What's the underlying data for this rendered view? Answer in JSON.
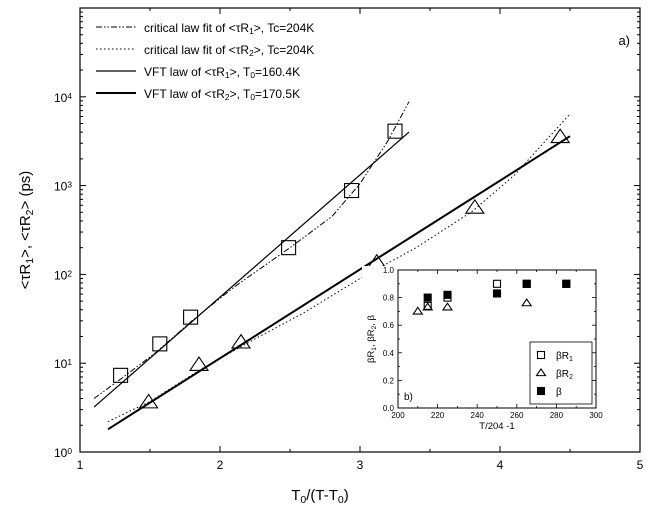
{
  "chart_data": [
    {
      "type": "scatter",
      "xlabel": "T₀/(T-T₀)",
      "ylabel": "<τR₁>, <τR₂> (ps)",
      "panel_label": "a)",
      "xlim": [
        1,
        5
      ],
      "ylim": [
        1,
        100000
      ],
      "yscale": "log",
      "x_ticks": [
        "1",
        "2",
        "3",
        "4",
        "5"
      ],
      "y_ticks": [
        "10⁰",
        "10¹",
        "10²",
        "10³",
        "10⁴"
      ],
      "legend_position": "top-left",
      "series": [
        {
          "name": "<τR₁>",
          "marker": "open-square",
          "x": [
            1.29,
            1.57,
            1.79,
            2.49,
            2.94,
            3.25
          ],
          "y": [
            7.3,
            16.5,
            33,
            200,
            880,
            4100
          ]
        },
        {
          "name": "<τR₂>",
          "marker": "open-triangle",
          "x": [
            1.49,
            1.85,
            2.15,
            3.12,
            3.82,
            4.43
          ],
          "y": [
            3.6,
            9.5,
            17,
            135,
            560,
            3500
          ]
        }
      ],
      "fits": [
        {
          "label": "critical law fit of <τR₁>, Tc=204K",
          "style": "dash-dot-dot",
          "x": [
            1.1,
            1.3,
            1.55,
            1.8,
            2.1,
            2.5,
            2.8,
            3.0,
            3.2,
            3.35
          ],
          "y": [
            4,
            6.8,
            13.5,
            30,
            72,
            200,
            450,
            1050,
            3200,
            8800
          ]
        },
        {
          "label": "critical law fit of <τR₂>, Tc=204K",
          "style": "dotted",
          "x": [
            1.2,
            1.5,
            1.85,
            2.2,
            2.6,
            3.0,
            3.4,
            3.8,
            4.1,
            4.5
          ],
          "y": [
            2.2,
            3.7,
            8.3,
            17,
            37,
            90,
            200,
            510,
            1300,
            6400
          ]
        },
        {
          "label": "VFT law of <τR₁>, T₀=160.4K",
          "style": "solid-thin",
          "x": [
            1.1,
            3.35
          ],
          "y": [
            3.2,
            4000
          ]
        },
        {
          "label": "VFT law of <τR₂>, T₀=170.5K",
          "style": "solid-thick",
          "x": [
            1.2,
            4.5
          ],
          "y": [
            1.8,
            3600
          ]
        }
      ]
    },
    {
      "type": "scatter",
      "panel_label": "b)",
      "xlabel": "T/204 -1",
      "ylabel": "βR₁, βR₂, β",
      "xlim": [
        200,
        300
      ],
      "ylim": [
        0.0,
        1.0
      ],
      "x_ticks": [
        "200",
        "220",
        "240",
        "260",
        "280",
        "300"
      ],
      "y_ticks": [
        "0.0",
        "0.2",
        "0.4",
        "0.6",
        "0.8",
        "1.0"
      ],
      "legend_position": "bottom-right",
      "series": [
        {
          "name": "βR₁",
          "marker": "open-square",
          "x": [
            215,
            225,
            250,
            265,
            285
          ],
          "y": [
            0.74,
            0.8,
            0.9,
            0.9,
            0.9
          ]
        },
        {
          "name": "βR₂",
          "marker": "open-triangle",
          "x": [
            210,
            215,
            225,
            265
          ],
          "y": [
            0.7,
            0.73,
            0.73,
            0.76
          ]
        },
        {
          "name": "β",
          "marker": "filled-square",
          "x": [
            215,
            225,
            250,
            265,
            285
          ],
          "y": [
            0.8,
            0.82,
            0.83,
            0.9,
            0.9
          ]
        }
      ]
    }
  ]
}
